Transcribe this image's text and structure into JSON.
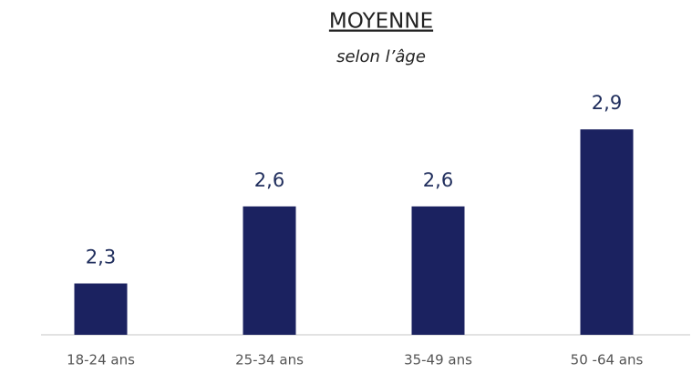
{
  "chart_data": {
    "type": "bar",
    "title": "MOYENNE",
    "subtitle": "selon l’âge",
    "categories": [
      "18-24 ans",
      "25-34 ans",
      "35-49 ans",
      "50 -64 ans"
    ],
    "values": [
      2.3,
      2.6,
      2.6,
      2.9
    ],
    "value_labels": [
      "2,3",
      "2,6",
      "2,6",
      "2,9"
    ],
    "color": "#1b2260",
    "ylim": [
      2.1,
      3.0
    ]
  }
}
